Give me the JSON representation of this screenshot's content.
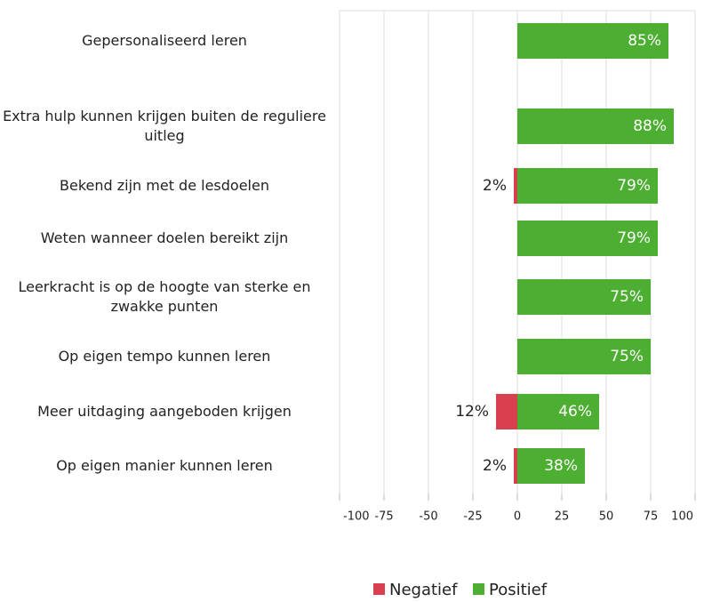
{
  "chart_data": {
    "type": "diverging-bar",
    "categories": [
      "Gepersonaliseerd leren",
      "Extra hulp kunnen krijgen buiten de reguliere uitleg",
      "Bekend zijn met de lesdoelen",
      "Weten wanneer doelen bereikt zijn",
      "Leerkracht is op de hoogte van sterke en zwakke punten",
      "Op eigen tempo kunnen leren",
      "Meer uitdaging aangeboden krijgen",
      "Op eigen manier kunnen leren"
    ],
    "series": [
      {
        "name": "Negatief",
        "color": "#d8404f",
        "values": [
          null,
          null,
          -2,
          null,
          null,
          null,
          -12,
          -2
        ],
        "value_labels": [
          null,
          null,
          "2%",
          null,
          null,
          null,
          "12%",
          "2%"
        ]
      },
      {
        "name": "Positief",
        "color": "#4caf32",
        "values": [
          85,
          88,
          79,
          79,
          75,
          75,
          46,
          38
        ],
        "value_labels": [
          "85%",
          "88%",
          "79%",
          "79%",
          "75%",
          "75%",
          "46%",
          "38%"
        ]
      }
    ],
    "xlim": [
      -100,
      100
    ],
    "xticks": [
      -100,
      -75,
      -50,
      -25,
      0,
      25,
      50,
      75,
      100
    ],
    "grid": true,
    "legend": "bottom"
  }
}
